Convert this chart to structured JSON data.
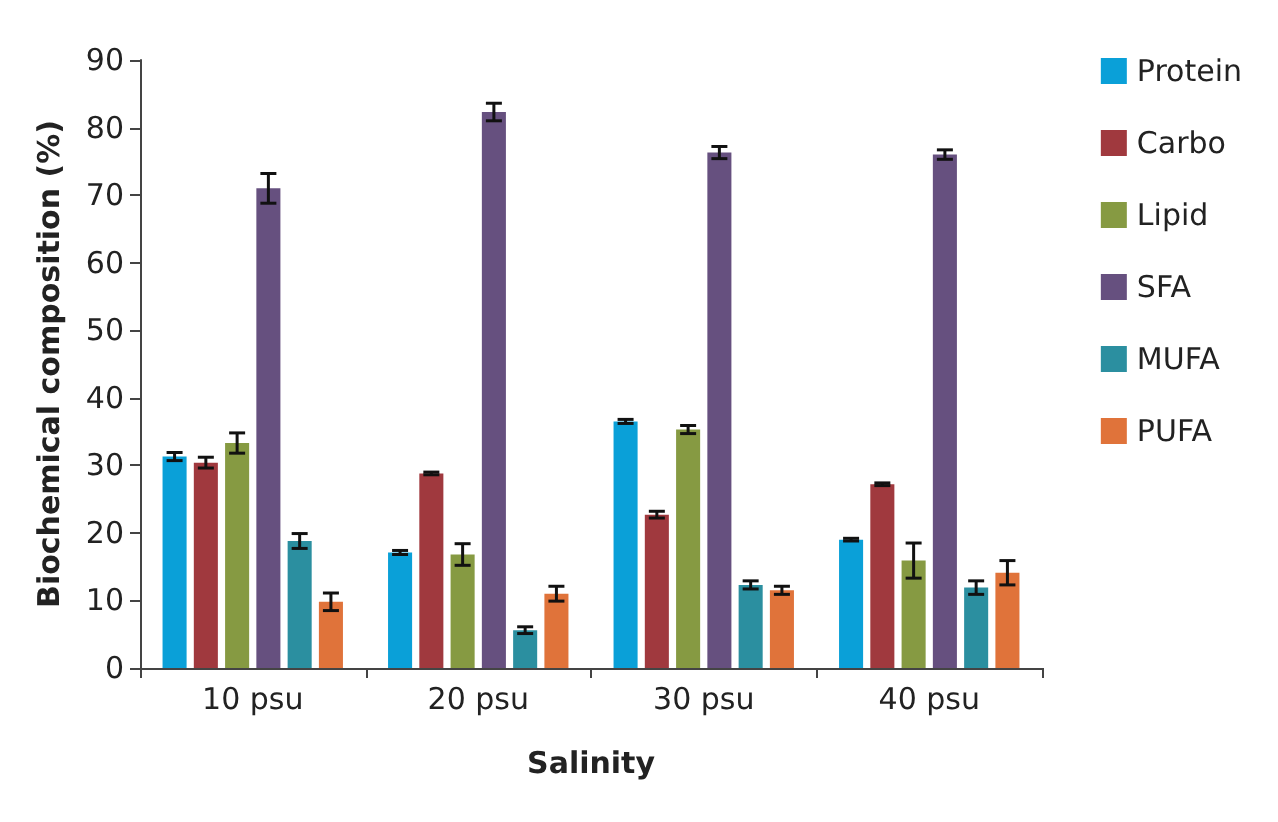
{
  "chart_data": {
    "type": "bar",
    "xlabel": "Salinity",
    "ylabel": "Biochemical composition (%)",
    "categories": [
      "10 psu",
      "20 psu",
      "30 psu",
      "40 psu"
    ],
    "series": [
      {
        "name": "Protein",
        "color": "#0aa0d8",
        "values": [
          31.3,
          17.1,
          36.5,
          19
        ],
        "errors": [
          0.6,
          0.3,
          0.3,
          0.2
        ]
      },
      {
        "name": "Carbo",
        "color": "#a0393e",
        "values": [
          30.4,
          28.8,
          22.7,
          27.2
        ],
        "errors": [
          0.8,
          0.2,
          0.5,
          0.2
        ]
      },
      {
        "name": "Lipid",
        "color": "#869a42",
        "values": [
          33.3,
          16.8,
          35.3,
          15.9
        ],
        "errors": [
          1.5,
          1.6,
          0.6,
          2.6
        ]
      },
      {
        "name": "SFA",
        "color": "#66507f",
        "values": [
          71,
          82.3,
          76.3,
          76
        ],
        "errors": [
          2.2,
          1.3,
          0.9,
          0.7
        ]
      },
      {
        "name": "MUFA",
        "color": "#2b8fa0",
        "values": [
          18.8,
          5.6,
          12.3,
          11.9
        ],
        "errors": [
          1.1,
          0.5,
          0.6,
          1
        ]
      },
      {
        "name": "PUFA",
        "color": "#e0733a",
        "values": [
          9.8,
          11,
          11.5,
          14.1
        ],
        "errors": [
          1.3,
          1.1,
          0.6,
          1.8
        ]
      }
    ],
    "ylim": [
      0,
      90
    ],
    "yticks": [
      0,
      10,
      20,
      30,
      40,
      50,
      60,
      70,
      80,
      90
    ],
    "grid": false,
    "legend": "right"
  }
}
